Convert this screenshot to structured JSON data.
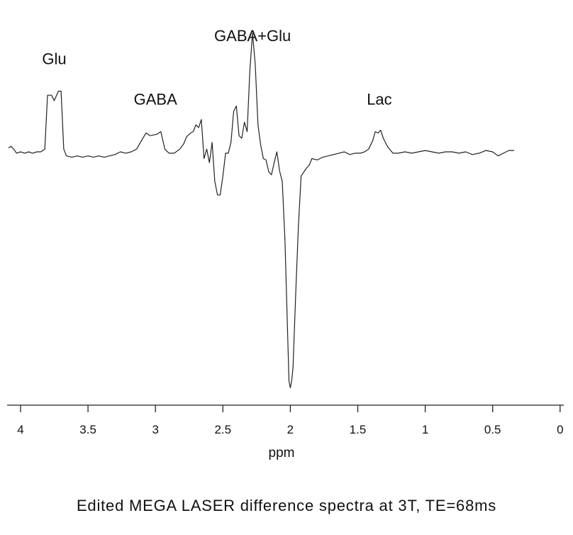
{
  "chart_data": {
    "type": "line",
    "xlabel": "ppm",
    "x_reversed": true,
    "xlim": [
      0,
      4.1
    ],
    "x_ticks": [
      {
        "value": 4,
        "label": "4"
      },
      {
        "value": 3.5,
        "label": "3.5"
      },
      {
        "value": 3,
        "label": "3"
      },
      {
        "value": 2.5,
        "label": "2.5"
      },
      {
        "value": 2,
        "label": "2"
      },
      {
        "value": 1.5,
        "label": "1.5"
      },
      {
        "value": 1,
        "label": "1"
      },
      {
        "value": 0.5,
        "label": "0.5"
      },
      {
        "value": 0,
        "label": "0"
      }
    ],
    "y_axis_visible": false,
    "ylim": [
      -1.8,
      0.85
    ],
    "grid": false,
    "annotations": [
      {
        "text": "Glu",
        "x": 3.75,
        "y": 0.65
      },
      {
        "text": "GABA",
        "x": 3.0,
        "y": 0.35
      },
      {
        "text": "GABA+Glu",
        "x": 2.28,
        "y": 0.82
      },
      {
        "text": "Lac",
        "x": 1.34,
        "y": 0.35
      }
    ],
    "series": [
      {
        "points": [
          [
            4.09,
            0.03
          ],
          [
            4.07,
            0.04
          ],
          [
            4.05,
            0.02
          ],
          [
            4.03,
            -0.01
          ],
          [
            4.0,
            0.0
          ],
          [
            3.97,
            -0.01
          ],
          [
            3.94,
            0.0
          ],
          [
            3.91,
            -0.01
          ],
          [
            3.88,
            0.0
          ],
          [
            3.85,
            0.0
          ],
          [
            3.82,
            0.02
          ],
          [
            3.8,
            0.42
          ],
          [
            3.77,
            0.42
          ],
          [
            3.75,
            0.38
          ],
          [
            3.72,
            0.45
          ],
          [
            3.7,
            0.45
          ],
          [
            3.68,
            0.02
          ],
          [
            3.66,
            -0.03
          ],
          [
            3.62,
            -0.04
          ],
          [
            3.58,
            -0.03
          ],
          [
            3.54,
            -0.04
          ],
          [
            3.5,
            -0.03
          ],
          [
            3.46,
            -0.04
          ],
          [
            3.42,
            -0.03
          ],
          [
            3.38,
            -0.04
          ],
          [
            3.34,
            -0.03
          ],
          [
            3.3,
            -0.02
          ],
          [
            3.26,
            0.0
          ],
          [
            3.22,
            -0.01
          ],
          [
            3.18,
            0.0
          ],
          [
            3.14,
            0.02
          ],
          [
            3.1,
            0.09
          ],
          [
            3.07,
            0.14
          ],
          [
            3.04,
            0.12
          ],
          [
            2.99,
            0.13
          ],
          [
            2.96,
            0.15
          ],
          [
            2.93,
            0.02
          ],
          [
            2.9,
            -0.01
          ],
          [
            2.86,
            -0.01
          ],
          [
            2.82,
            0.02
          ],
          [
            2.79,
            0.06
          ],
          [
            2.77,
            0.11
          ],
          [
            2.74,
            0.14
          ],
          [
            2.72,
            0.15
          ],
          [
            2.7,
            0.2
          ],
          [
            2.68,
            0.18
          ],
          [
            2.66,
            0.24
          ],
          [
            2.64,
            -0.05
          ],
          [
            2.62,
            0.02
          ],
          [
            2.6,
            -0.08
          ],
          [
            2.58,
            0.07
          ],
          [
            2.56,
            -0.22
          ],
          [
            2.54,
            -0.32
          ],
          [
            2.52,
            -0.32
          ],
          [
            2.5,
            -0.18
          ],
          [
            2.48,
            -0.01
          ],
          [
            2.46,
            -0.01
          ],
          [
            2.44,
            0.07
          ],
          [
            2.42,
            0.3
          ],
          [
            2.4,
            0.34
          ],
          [
            2.38,
            0.12
          ],
          [
            2.36,
            0.1
          ],
          [
            2.34,
            0.22
          ],
          [
            2.32,
            0.15
          ],
          [
            2.3,
            0.6
          ],
          [
            2.28,
            0.88
          ],
          [
            2.26,
            0.65
          ],
          [
            2.24,
            0.2
          ],
          [
            2.22,
            0.05
          ],
          [
            2.2,
            -0.05
          ],
          [
            2.18,
            -0.06
          ],
          [
            2.16,
            -0.15
          ],
          [
            2.14,
            -0.17
          ],
          [
            2.12,
            -0.08
          ],
          [
            2.1,
            0.0
          ],
          [
            2.08,
            -0.14
          ],
          [
            2.06,
            -0.22
          ],
          [
            2.04,
            -0.65
          ],
          [
            2.02,
            -1.35
          ],
          [
            2.01,
            -1.7
          ],
          [
            2.0,
            -1.75
          ],
          [
            1.99,
            -1.7
          ],
          [
            1.98,
            -1.6
          ],
          [
            1.96,
            -1.05
          ],
          [
            1.94,
            -0.55
          ],
          [
            1.92,
            -0.18
          ],
          [
            1.9,
            -0.15
          ],
          [
            1.88,
            -0.12
          ],
          [
            1.86,
            -0.1
          ],
          [
            1.84,
            -0.05
          ],
          [
            1.8,
            -0.06
          ],
          [
            1.76,
            -0.04
          ],
          [
            1.72,
            -0.03
          ],
          [
            1.68,
            -0.02
          ],
          [
            1.64,
            -0.01
          ],
          [
            1.6,
            0.0
          ],
          [
            1.56,
            -0.02
          ],
          [
            1.52,
            -0.01
          ],
          [
            1.48,
            -0.01
          ],
          [
            1.45,
            0.0
          ],
          [
            1.42,
            0.02
          ],
          [
            1.39,
            0.08
          ],
          [
            1.37,
            0.15
          ],
          [
            1.35,
            0.14
          ],
          [
            1.33,
            0.16
          ],
          [
            1.31,
            0.1
          ],
          [
            1.28,
            0.04
          ],
          [
            1.24,
            -0.01
          ],
          [
            1.2,
            -0.01
          ],
          [
            1.15,
            0.0
          ],
          [
            1.1,
            -0.01
          ],
          [
            1.05,
            0.0
          ],
          [
            1.0,
            0.01
          ],
          [
            0.95,
            0.0
          ],
          [
            0.9,
            -0.01
          ],
          [
            0.85,
            0.0
          ],
          [
            0.8,
            0.0
          ],
          [
            0.75,
            -0.01
          ],
          [
            0.7,
            0.0
          ],
          [
            0.65,
            -0.02
          ],
          [
            0.6,
            -0.01
          ],
          [
            0.55,
            0.01
          ],
          [
            0.5,
            0.0
          ],
          [
            0.46,
            -0.03
          ],
          [
            0.42,
            -0.01
          ],
          [
            0.38,
            0.01
          ],
          [
            0.34,
            0.01
          ]
        ]
      }
    ]
  },
  "caption": "Edited MEGA LASER difference spectra at 3T, TE=68ms"
}
